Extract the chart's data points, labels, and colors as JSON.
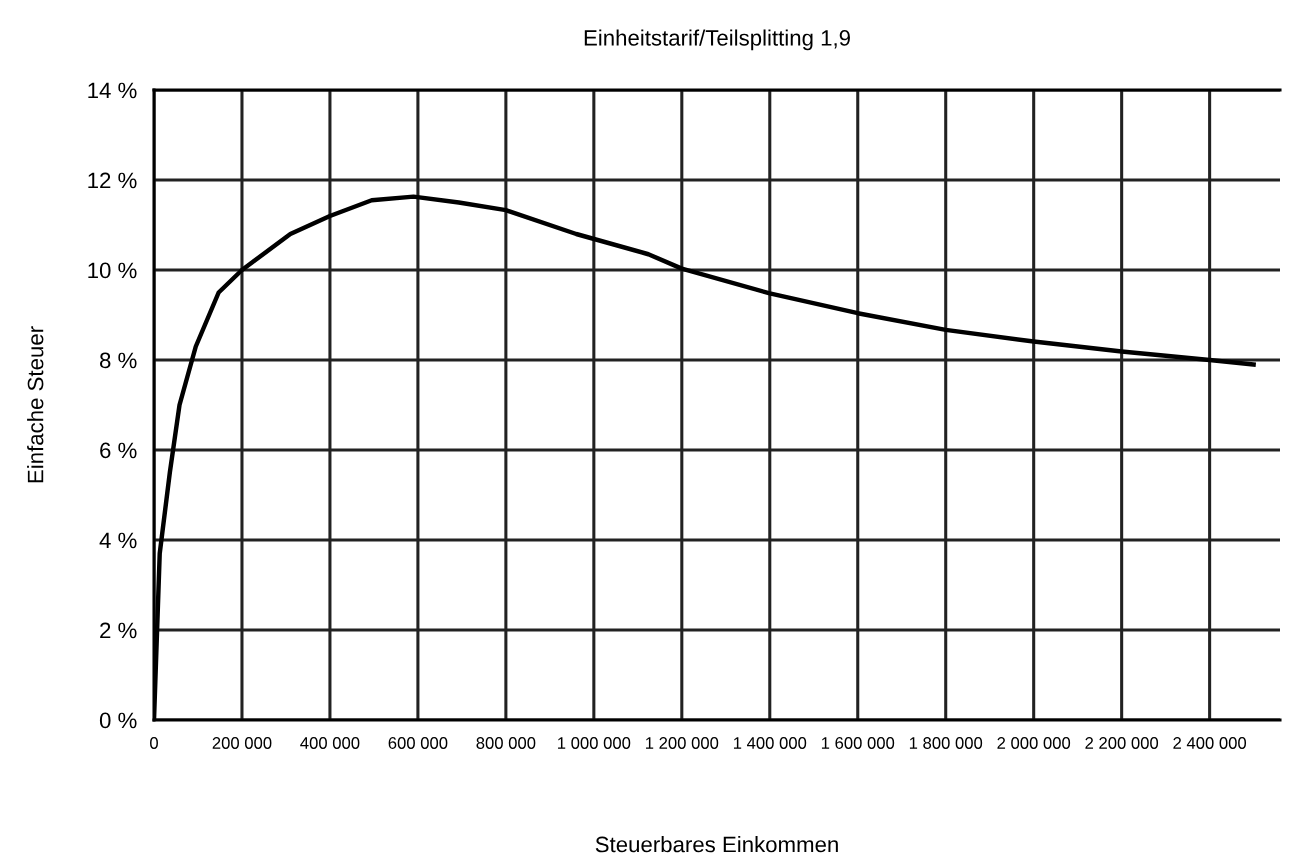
{
  "chart_data": {
    "type": "line",
    "title": "Einheitstarif/Teilsplitting 1,9",
    "xlabel": "Steuerbares Einkommen",
    "ylabel": "Einfache Steuer",
    "series": [
      {
        "color": "#000000",
        "x": [
          0,
          13000,
          36000,
          58000,
          95000,
          147000,
          200000,
          310000,
          400000,
          495000,
          590000,
          693000,
          800000,
          960000,
          1124000,
          1200000,
          1400000,
          1600000,
          1800000,
          2000000,
          2200000,
          2400000,
          2500000
        ],
        "values": [
          0,
          3.7,
          5.5,
          7.0,
          8.3,
          9.5,
          10.0,
          10.8,
          11.2,
          11.55,
          11.63,
          11.5,
          11.33,
          10.8,
          10.35,
          10.03,
          9.48,
          9.04,
          8.67,
          8.41,
          8.19,
          8.0,
          7.9
        ]
      }
    ],
    "xlim": [
      0,
      2560000
    ],
    "ylim": [
      0,
      14
    ],
    "xticks": [
      0,
      {
        "value": 200000,
        "label": "200 000"
      },
      {
        "value": 400000,
        "label": "400 000"
      },
      {
        "value": 600000,
        "label": "600 000"
      },
      {
        "value": 800000,
        "label": "800 000"
      },
      {
        "value": 1000000,
        "label": "1 000 000"
      },
      {
        "value": 1200000,
        "label": "1 200 000"
      },
      {
        "value": 1400000,
        "label": "1 400 000"
      },
      {
        "value": 1600000,
        "label": "1 600 000"
      },
      {
        "value": 1800000,
        "label": "1 800 000"
      },
      {
        "value": 2000000,
        "label": "2 000 000"
      },
      {
        "value": 2200000,
        "label": "2 200 000"
      },
      {
        "value": 2400000,
        "label": "2 400 000"
      }
    ],
    "yticks": [
      {
        "value": 0,
        "label": "0 %"
      },
      {
        "value": 2,
        "label": "2 %"
      },
      {
        "value": 4,
        "label": "4 %"
      },
      {
        "value": 6,
        "label": "6 %"
      },
      {
        "value": 8,
        "label": "8 %"
      },
      {
        "value": 10,
        "label": "10 %"
      },
      {
        "value": 12,
        "label": "12 %"
      },
      {
        "value": 14,
        "label": "14 %"
      }
    ],
    "grid": true,
    "marker": "none",
    "line_style": "solid",
    "legend": false
  }
}
